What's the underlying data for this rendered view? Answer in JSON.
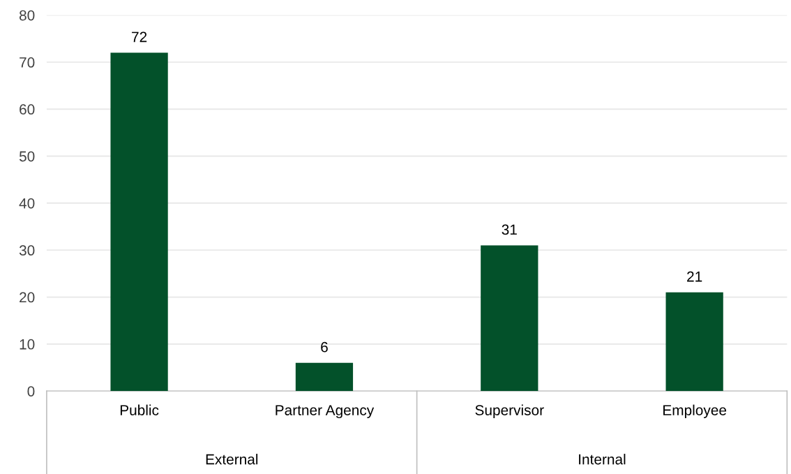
{
  "chart_data": {
    "type": "bar",
    "categories": [
      "Public",
      "Partner Agency",
      "Supervisor",
      "Employee"
    ],
    "values": [
      72,
      6,
      31,
      21
    ],
    "color": "#03512a",
    "ylim": [
      0,
      80
    ],
    "yticks": [
      0,
      10,
      20,
      30,
      40,
      50,
      60,
      70,
      80
    ],
    "grid": "y",
    "data_labels": true,
    "annotations": [
      "External",
      "Internal"
    ]
  }
}
